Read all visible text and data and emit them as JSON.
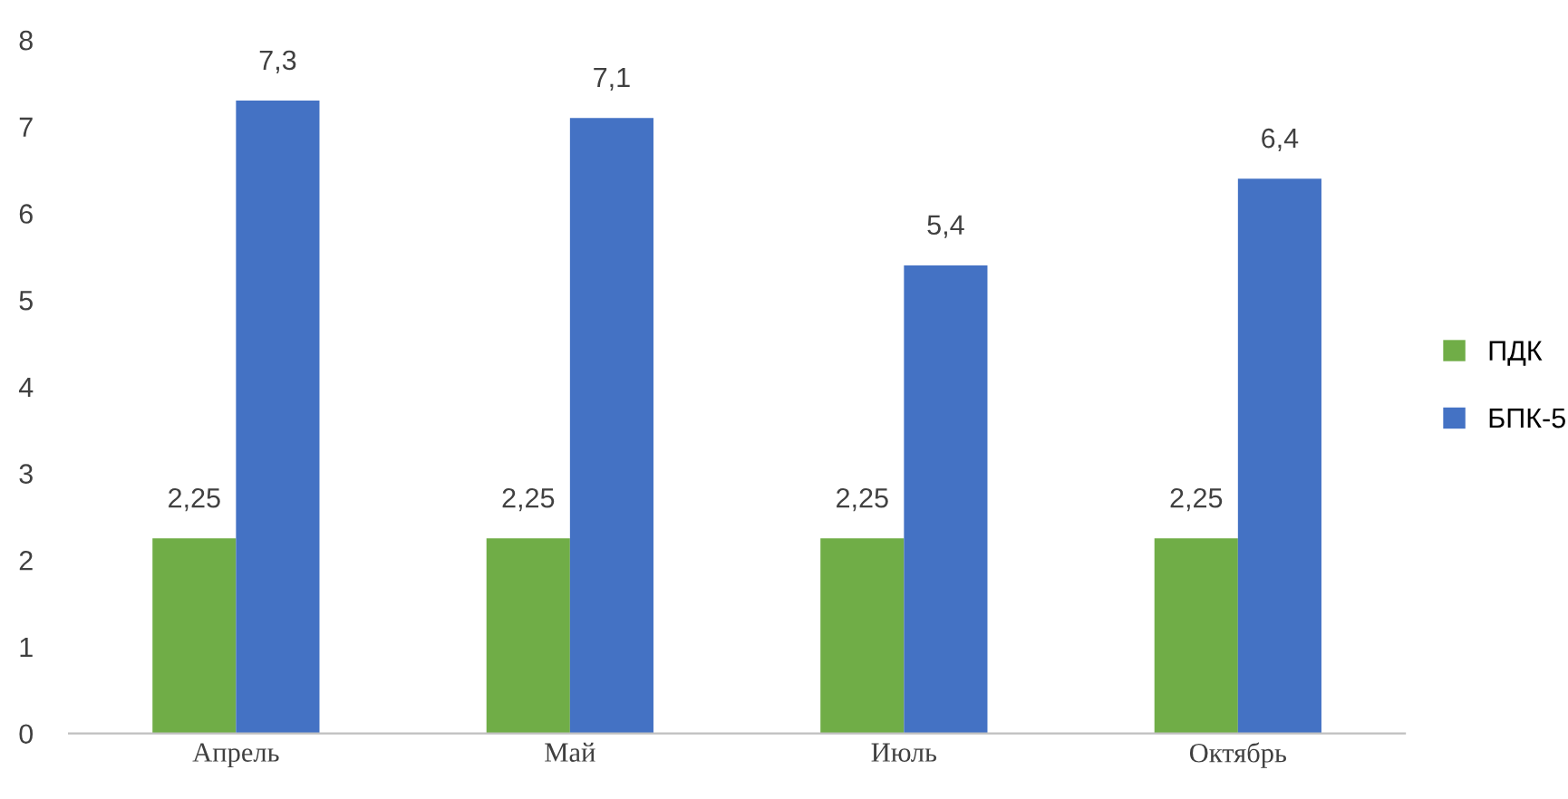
{
  "chart_data": {
    "type": "bar",
    "categories": [
      "Апрель",
      "Май",
      "Июль",
      "Октябрь"
    ],
    "series": [
      {
        "name": "ПДК",
        "color": "#70ad47",
        "values": [
          2.25,
          2.25,
          2.25,
          2.25
        ],
        "value_labels": [
          "2,25",
          "2,25",
          "2,25",
          "2,25"
        ]
      },
      {
        "name": "БПК-5",
        "color": "#4472c4",
        "values": [
          7.3,
          7.1,
          5.4,
          6.4
        ],
        "value_labels": [
          "7,3",
          "7,1",
          "5,4",
          "6,4"
        ]
      }
    ],
    "ylim": [
      0,
      8
    ],
    "yticks": [
      0,
      1,
      2,
      3,
      4,
      5,
      6,
      7,
      8
    ],
    "grid": false,
    "legend": "right"
  }
}
